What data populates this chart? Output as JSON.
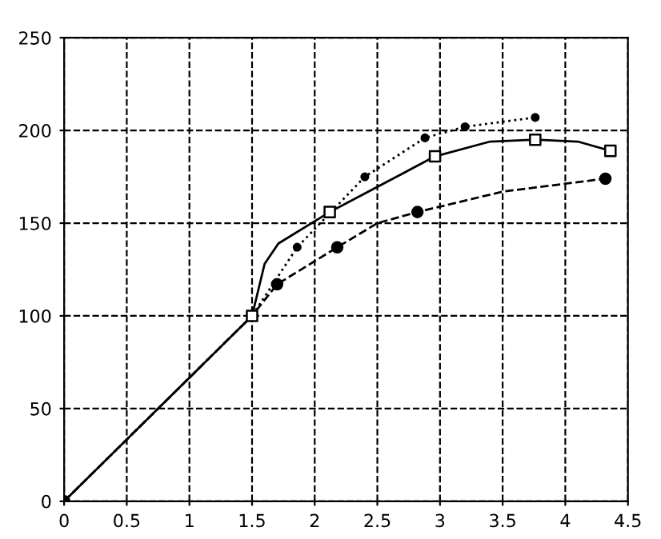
{
  "chart_data": {
    "type": "line",
    "series": [
      {
        "color": "#000000",
        "line_style": "solid",
        "marker": "none",
        "x": [
          0,
          1.5,
          1.6,
          1.71,
          2.12,
          2.96,
          3.4,
          3.76,
          4.1,
          4.36
        ],
        "values": [
          0,
          100,
          128,
          139,
          156,
          186,
          194,
          195,
          194,
          189
        ]
      },
      {
        "type": "scatter",
        "color": "#000000",
        "marker": "square",
        "x": [
          1.5,
          2.12,
          2.96,
          3.76,
          4.36
        ],
        "values": [
          100,
          156,
          186,
          195,
          189
        ]
      },
      {
        "color": "#000000",
        "line_style": "dotted",
        "marker": "circle",
        "x": [
          0,
          1.5,
          1.86,
          2.4,
          2.88,
          3.2,
          3.76
        ],
        "values": [
          0,
          100,
          137,
          175,
          196,
          202,
          207
        ]
      },
      {
        "color": "#000000",
        "line_style": "dashed",
        "marker": "none",
        "x": [
          0,
          1.5,
          1.7,
          2.18,
          2.5,
          2.82,
          3.5,
          4.32
        ],
        "values": [
          0,
          100,
          117,
          137,
          150,
          156,
          167,
          174
        ]
      },
      {
        "type": "scatter",
        "color": "#000000",
        "marker": "circle",
        "x": [
          0,
          1.7,
          2.18,
          2.82,
          4.32
        ],
        "values": [
          0,
          117,
          137,
          156,
          174
        ]
      }
    ],
    "xlim": [
      0,
      4.5
    ],
    "xticks": [
      0,
      0.5,
      1,
      1.5,
      2,
      2.5,
      3,
      3.5,
      4,
      4.5
    ],
    "ylim": [
      0,
      250
    ],
    "yticks": [
      0,
      50,
      100,
      150,
      200,
      250
    ],
    "grid": true
  }
}
